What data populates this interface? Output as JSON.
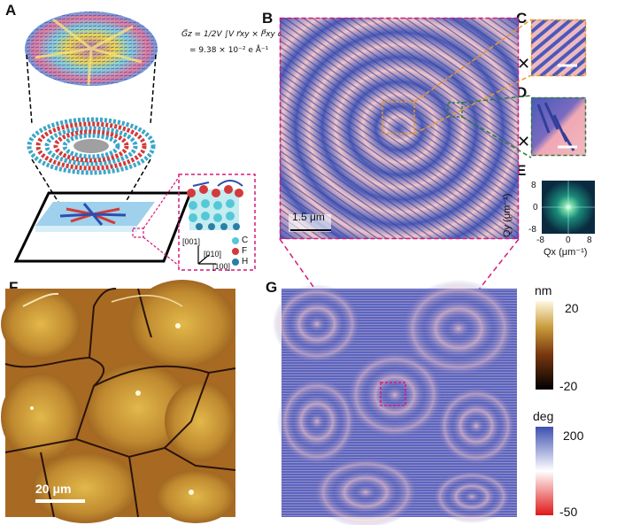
{
  "panels": {
    "A": "A",
    "B": "B",
    "C": "C",
    "D": "D",
    "E": "E",
    "F": "F",
    "G": "G"
  },
  "equation": {
    "line1": "G⃗z = 1/2V ∫V r⃗xy × P⃗xy dV",
    "line2": "= 9.38 × 10⁻² e Å⁻¹"
  },
  "crystal": {
    "axis_001": "[001]",
    "axis_010": "[010]",
    "axis_100": "[100]",
    "legend": [
      {
        "label": "C",
        "color": "#55c8d8"
      },
      {
        "label": "F",
        "color": "#d33a3a"
      },
      {
        "label": "H",
        "color": "#2a7fa6"
      }
    ]
  },
  "scalebar_B": "1.5 μm",
  "scalebar_F": "20 μm",
  "fft": {
    "ylabel": "Qy (μm⁻¹)",
    "xlabel": "Qx (μm⁻¹)",
    "yticks": [
      "8",
      "0",
      "-8"
    ],
    "xticks": [
      "-8",
      "0",
      "8"
    ]
  },
  "colorbars": {
    "height": {
      "unit": "nm",
      "max": "20",
      "min": "-20"
    },
    "phase": {
      "unit": "deg",
      "max": "200",
      "min": "-50"
    }
  },
  "colors": {
    "magenta": "#d6197a",
    "orange": "#e89a2a",
    "green": "#2c7a3c",
    "blue": "#3e4fb0",
    "pink": "#f4c9cc"
  }
}
